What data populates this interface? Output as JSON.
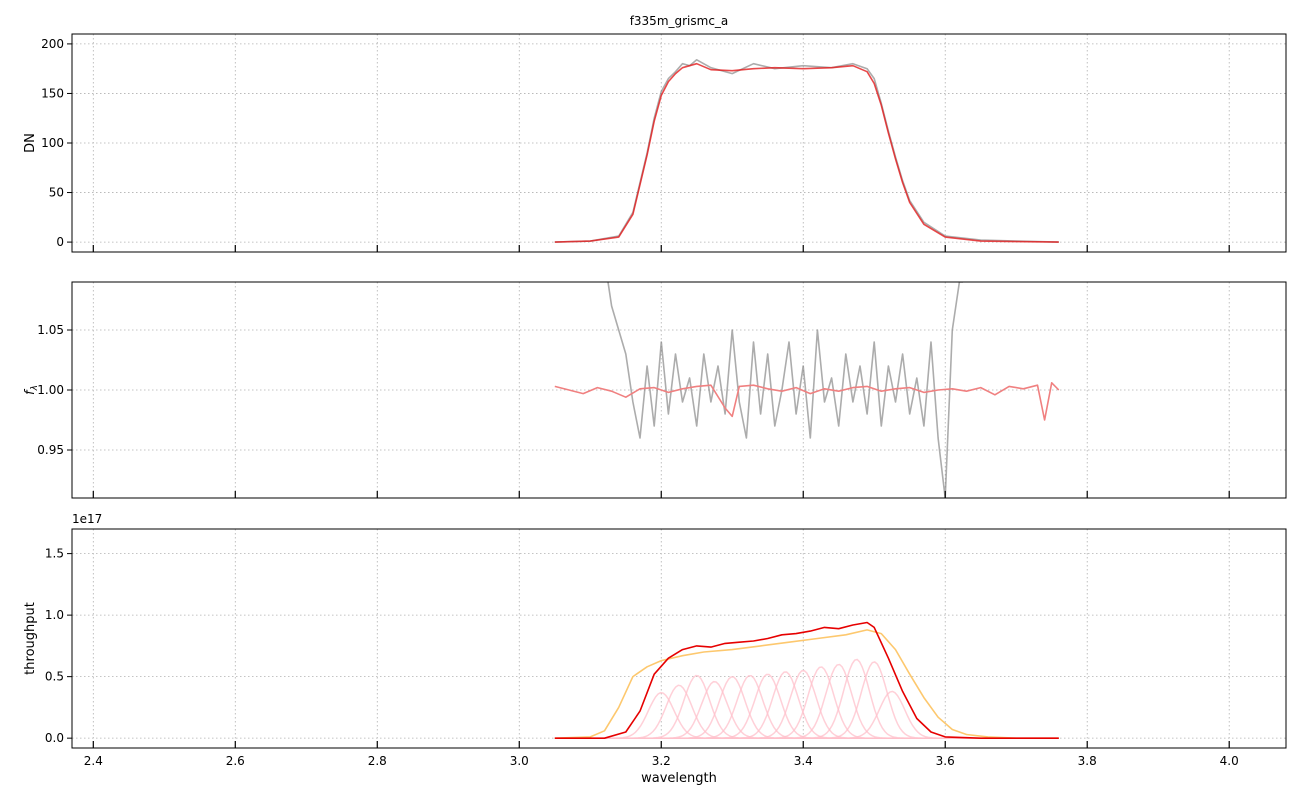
{
  "figure": {
    "title": "f335m_grismc_a",
    "xlabel": "wavelength"
  },
  "chart_data": [
    {
      "type": "line",
      "title": "f335m_grismc_a",
      "xlabel": "",
      "ylabel": "DN",
      "xlim": [
        2.37,
        4.08
      ],
      "ylim": [
        -10,
        210
      ],
      "xticks": [
        2.4,
        2.6,
        2.8,
        3.0,
        3.2,
        3.4,
        3.6,
        3.8,
        4.0
      ],
      "yticks": [
        0,
        50,
        100,
        150,
        200
      ],
      "tick_labels_x": false,
      "grid": true,
      "series": [
        {
          "role": "observed",
          "color": "#808080",
          "x": [
            3.05,
            3.1,
            3.14,
            3.16,
            3.18,
            3.19,
            3.2,
            3.21,
            3.22,
            3.23,
            3.24,
            3.25,
            3.27,
            3.3,
            3.33,
            3.36,
            3.4,
            3.44,
            3.47,
            3.49,
            3.5,
            3.51,
            3.52,
            3.53,
            3.54,
            3.55,
            3.57,
            3.6,
            3.65,
            3.7,
            3.76
          ],
          "y": [
            0,
            1,
            6,
            30,
            90,
            125,
            152,
            165,
            172,
            180,
            178,
            184,
            176,
            170,
            180,
            175,
            178,
            176,
            180,
            175,
            165,
            140,
            112,
            86,
            62,
            42,
            20,
            6,
            2,
            1,
            0
          ]
        },
        {
          "role": "model",
          "color": "#e41a1c",
          "x": [
            3.05,
            3.1,
            3.14,
            3.16,
            3.18,
            3.19,
            3.2,
            3.21,
            3.22,
            3.23,
            3.24,
            3.25,
            3.27,
            3.3,
            3.33,
            3.36,
            3.4,
            3.44,
            3.47,
            3.49,
            3.5,
            3.51,
            3.52,
            3.53,
            3.54,
            3.55,
            3.57,
            3.6,
            3.65,
            3.7,
            3.76
          ],
          "y": [
            0,
            1,
            5,
            28,
            88,
            122,
            148,
            162,
            170,
            176,
            178,
            180,
            174,
            173,
            175,
            176,
            175,
            176,
            178,
            172,
            160,
            138,
            110,
            84,
            60,
            40,
            18,
            5,
            1,
            0.5,
            0
          ]
        }
      ]
    },
    {
      "type": "line",
      "xlabel": "",
      "ylabel": "f_λ",
      "xlim": [
        2.37,
        4.08
      ],
      "ylim": [
        0.91,
        1.09
      ],
      "xticks": [
        2.4,
        2.6,
        2.8,
        3.0,
        3.2,
        3.4,
        3.6,
        3.8,
        4.0
      ],
      "yticks": [
        0.95,
        1.0,
        1.05
      ],
      "tick_labels_x": false,
      "grid": true,
      "series": [
        {
          "role": "ratio",
          "color": "#808080",
          "x": [
            3.125,
            3.13,
            3.14,
            3.15,
            3.16,
            3.17,
            3.18,
            3.19,
            3.2,
            3.21,
            3.22,
            3.23,
            3.24,
            3.25,
            3.26,
            3.27,
            3.28,
            3.29,
            3.3,
            3.31,
            3.32,
            3.33,
            3.34,
            3.35,
            3.36,
            3.37,
            3.38,
            3.39,
            3.4,
            3.41,
            3.42,
            3.43,
            3.44,
            3.45,
            3.46,
            3.47,
            3.48,
            3.49,
            3.5,
            3.51,
            3.52,
            3.53,
            3.54,
            3.55,
            3.56,
            3.57,
            3.58,
            3.59,
            3.6,
            3.61,
            3.62,
            3.625
          ],
          "y": [
            1.09,
            1.07,
            1.05,
            1.03,
            0.99,
            0.96,
            1.02,
            0.97,
            1.04,
            0.98,
            1.03,
            0.99,
            1.01,
            0.97,
            1.03,
            0.99,
            1.02,
            0.98,
            1.05,
            0.99,
            0.96,
            1.04,
            0.98,
            1.03,
            0.97,
            1.0,
            1.04,
            0.98,
            1.02,
            0.96,
            1.05,
            0.99,
            1.01,
            0.97,
            1.03,
            0.99,
            1.02,
            0.98,
            1.04,
            0.97,
            1.02,
            0.99,
            1.03,
            0.98,
            1.01,
            0.97,
            1.04,
            0.96,
            0.91,
            1.05,
            1.09,
            1.09
          ]
        },
        {
          "role": "residual",
          "color": "#f08080",
          "x": [
            3.05,
            3.07,
            3.09,
            3.11,
            3.13,
            3.15,
            3.17,
            3.19,
            3.21,
            3.23,
            3.25,
            3.27,
            3.29,
            3.3,
            3.31,
            3.33,
            3.35,
            3.37,
            3.39,
            3.41,
            3.43,
            3.45,
            3.47,
            3.49,
            3.51,
            3.53,
            3.55,
            3.57,
            3.59,
            3.61,
            3.63,
            3.65,
            3.67,
            3.69,
            3.71,
            3.73,
            3.74,
            3.75,
            3.76
          ],
          "y": [
            1.003,
            1.0,
            0.997,
            1.002,
            0.999,
            0.994,
            1.001,
            1.002,
            0.998,
            1.001,
            1.003,
            1.004,
            0.985,
            0.978,
            1.003,
            1.004,
            1.001,
            0.999,
            1.002,
            0.997,
            1.001,
            0.999,
            1.002,
            1.003,
            0.999,
            1.001,
            1.002,
            0.998,
            1.0,
            1.001,
            0.999,
            1.002,
            0.996,
            1.003,
            1.001,
            1.004,
            0.975,
            1.006,
            1.0
          ]
        }
      ]
    },
    {
      "type": "line",
      "xlabel": "wavelength",
      "ylabel": "throughput",
      "y_scale_multiplier": "1e17",
      "xlim": [
        2.37,
        4.08
      ],
      "ylim": [
        -0.08,
        1.7
      ],
      "xticks": [
        2.4,
        2.6,
        2.8,
        3.0,
        3.2,
        3.4,
        3.6,
        3.8,
        4.0
      ],
      "yticks": [
        0.0,
        0.5,
        1.0,
        1.5
      ],
      "tick_labels_x": true,
      "grid": true,
      "series": [
        {
          "role": "total",
          "color": "#e60000",
          "x": [
            3.05,
            3.12,
            3.15,
            3.17,
            3.19,
            3.21,
            3.23,
            3.25,
            3.27,
            3.29,
            3.31,
            3.33,
            3.35,
            3.37,
            3.39,
            3.41,
            3.43,
            3.45,
            3.47,
            3.49,
            3.5,
            3.52,
            3.54,
            3.56,
            3.58,
            3.6,
            3.65,
            3.76
          ],
          "y": [
            0.0,
            0.0,
            0.05,
            0.22,
            0.52,
            0.65,
            0.72,
            0.75,
            0.74,
            0.77,
            0.78,
            0.79,
            0.81,
            0.84,
            0.85,
            0.87,
            0.9,
            0.89,
            0.92,
            0.94,
            0.9,
            0.65,
            0.38,
            0.16,
            0.05,
            0.01,
            0.0,
            0.0
          ]
        },
        {
          "role": "bandpass",
          "color": "#fdc86e",
          "x": [
            3.05,
            3.1,
            3.12,
            3.14,
            3.16,
            3.18,
            3.2,
            3.23,
            3.26,
            3.3,
            3.34,
            3.38,
            3.42,
            3.46,
            3.49,
            3.51,
            3.53,
            3.55,
            3.57,
            3.59,
            3.61,
            3.63,
            3.66,
            3.7,
            3.76
          ],
          "y": [
            0.0,
            0.01,
            0.06,
            0.25,
            0.5,
            0.58,
            0.63,
            0.67,
            0.7,
            0.72,
            0.75,
            0.78,
            0.81,
            0.84,
            0.88,
            0.85,
            0.72,
            0.52,
            0.33,
            0.17,
            0.07,
            0.03,
            0.01,
            0.0,
            0.0
          ]
        }
      ],
      "components": {
        "color": "#ffc0cb",
        "width": 0.018,
        "centers": [
          3.2,
          3.225,
          3.25,
          3.275,
          3.3,
          3.325,
          3.35,
          3.375,
          3.4,
          3.425,
          3.45,
          3.475,
          3.5,
          3.525
        ],
        "peaks": [
          0.37,
          0.43,
          0.51,
          0.46,
          0.5,
          0.51,
          0.52,
          0.54,
          0.55,
          0.58,
          0.6,
          0.64,
          0.62,
          0.38
        ]
      }
    }
  ]
}
